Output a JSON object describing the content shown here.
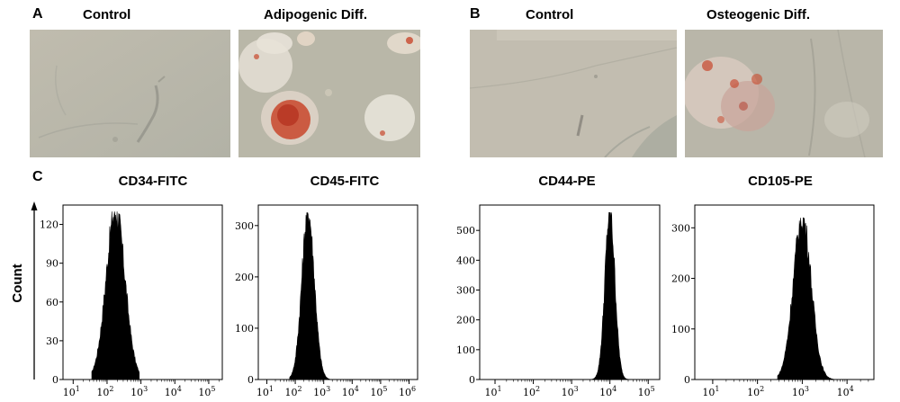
{
  "panels": {
    "a": {
      "letter": "A",
      "control_title": "Control",
      "treated_title": "Adipogenic Diff."
    },
    "b": {
      "letter": "B",
      "control_title": "Control",
      "treated_title": "Osteogenic Diff."
    },
    "c": {
      "letter": "C",
      "y_axis_label": "Count"
    }
  },
  "colors": {
    "photo_background": "#b9b7a8",
    "stain_red": "#c8472c",
    "histogram_fill": "#000000"
  },
  "chart_data": [
    {
      "type": "histogram",
      "title": "CD34-FITC",
      "x_scale": "log",
      "x_tick_exponents": [
        1,
        2,
        3,
        4,
        5
      ],
      "y_ticks": [
        0,
        30,
        60,
        90,
        120
      ],
      "ylim": [
        0,
        135
      ],
      "peak_log10": 2.25,
      "peak_count": 130,
      "spread_log10": 0.28,
      "range_log10": [
        1.55,
        2.95
      ]
    },
    {
      "type": "histogram",
      "title": "CD45-FITC",
      "x_scale": "log",
      "x_tick_exponents": [
        1,
        2,
        3,
        4,
        5,
        6
      ],
      "y_ticks": [
        0,
        100,
        200,
        300
      ],
      "ylim": [
        0,
        340
      ],
      "peak_log10": 2.45,
      "peak_count": 325,
      "spread_log10": 0.22,
      "range_log10": [
        1.8,
        3.2
      ]
    },
    {
      "type": "histogram",
      "title": "CD44-PE",
      "x_scale": "log",
      "x_tick_exponents": [
        1,
        2,
        3,
        4,
        5
      ],
      "y_ticks": [
        0,
        100,
        200,
        300,
        400,
        500
      ],
      "ylim": [
        0,
        585
      ],
      "peak_log10": 4.0,
      "peak_count": 560,
      "spread_log10": 0.13,
      "range_log10": [
        3.45,
        4.5
      ]
    },
    {
      "type": "histogram",
      "title": "CD105-PE",
      "x_scale": "log",
      "x_tick_exponents": [
        1,
        2,
        3,
        4
      ],
      "y_ticks": [
        0,
        100,
        200,
        300
      ],
      "ylim": [
        0,
        345
      ],
      "peak_log10": 3.0,
      "peak_count": 320,
      "spread_log10": 0.2,
      "range_log10": [
        2.45,
        3.7
      ]
    }
  ]
}
